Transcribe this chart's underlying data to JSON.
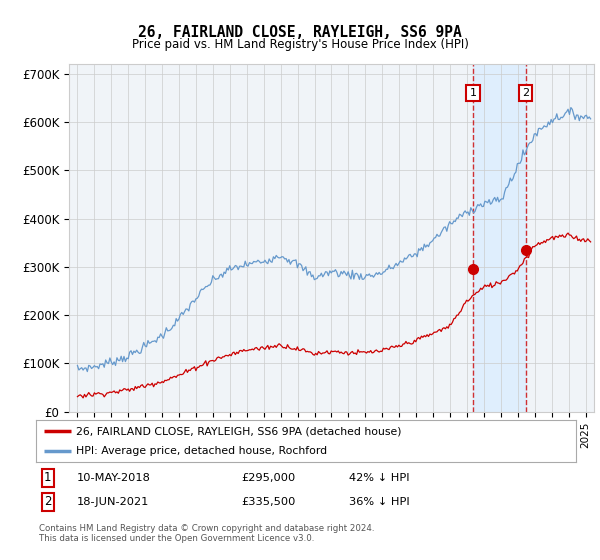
{
  "title": "26, FAIRLAND CLOSE, RAYLEIGH, SS6 9PA",
  "subtitle": "Price paid vs. HM Land Registry's House Price Index (HPI)",
  "ylim": [
    0,
    720000
  ],
  "xlim_start": 1994.5,
  "xlim_end": 2025.5,
  "transaction1_date": 2018.36,
  "transaction1_price": 295000,
  "transaction1_label": "10-MAY-2018",
  "transaction1_price_str": "£295,000",
  "transaction1_hpi_str": "42% ↓ HPI",
  "transaction2_date": 2021.46,
  "transaction2_price": 335500,
  "transaction2_label": "18-JUN-2021",
  "transaction2_price_str": "£335,500",
  "transaction2_hpi_str": "36% ↓ HPI",
  "legend_entry1": "26, FAIRLAND CLOSE, RAYLEIGH, SS6 9PA (detached house)",
  "legend_entry2": "HPI: Average price, detached house, Rochford",
  "footer1": "Contains HM Land Registry data © Crown copyright and database right 2024.",
  "footer2": "This data is licensed under the Open Government Licence v3.0.",
  "line_color_red": "#cc0000",
  "line_color_blue": "#6699cc",
  "shading_color": "#ddeeff",
  "grid_color": "#cccccc",
  "bg_color": "#f0f4f8",
  "box_color": "#cc0000",
  "hpi_years": [
    1995,
    1996,
    1997,
    1998,
    1999,
    2000,
    2001,
    2002,
    2003,
    2004,
    2005,
    2006,
    2007,
    2008,
    2009,
    2010,
    2011,
    2012,
    2013,
    2014,
    2015,
    2016,
    2017,
    2018,
    2019,
    2020,
    2021,
    2022,
    2023,
    2024,
    2025
  ],
  "hpi_values": [
    88000,
    93000,
    103000,
    115000,
    135000,
    158000,
    192000,
    235000,
    272000,
    295000,
    305000,
    312000,
    325000,
    305000,
    278000,
    290000,
    285000,
    280000,
    288000,
    308000,
    328000,
    356000,
    388000,
    415000,
    432000,
    438000,
    510000,
    575000,
    605000,
    620000,
    610000
  ],
  "red_years": [
    1995,
    1996,
    1997,
    1998,
    1999,
    2000,
    2001,
    2002,
    2003,
    2004,
    2005,
    2006,
    2007,
    2008,
    2009,
    2010,
    2011,
    2012,
    2013,
    2014,
    2015,
    2016,
    2017,
    2018,
    2019,
    2020,
    2021,
    2022,
    2023,
    2024,
    2025
  ],
  "red_values": [
    33000,
    36000,
    40000,
    45000,
    54000,
    63000,
    75000,
    92000,
    107000,
    118000,
    128000,
    132000,
    138000,
    130000,
    120000,
    125000,
    122000,
    122000,
    126000,
    136000,
    148000,
    162000,
    178000,
    230000,
    258000,
    268000,
    295000,
    345000,
    360000,
    365000,
    355000
  ]
}
